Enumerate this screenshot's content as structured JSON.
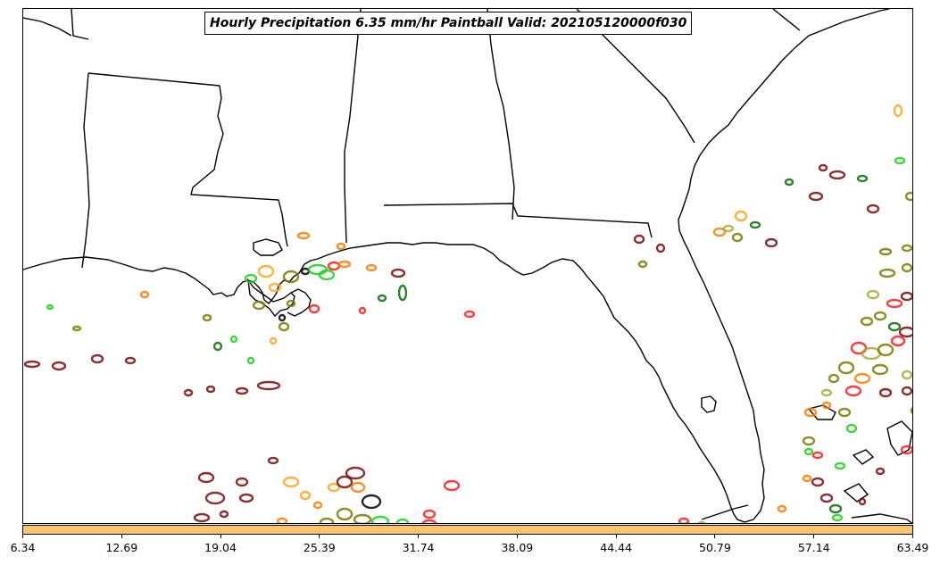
{
  "title": "Hourly Precipitation 6.35 mm/hr Paintball Valid: 202105120000f030",
  "colorbar": {
    "color": "#ffc56b",
    "ticks": [
      "6.34",
      "12.69",
      "19.04",
      "25.39",
      "31.74",
      "38.09",
      "44.44",
      "50.79",
      "57.14",
      "63.49"
    ]
  },
  "colors": {
    "member_colors": [
      "#7a0b0b",
      "#ff1a1a",
      "#ff7a00",
      "#ffa41f",
      "#1fcf1f",
      "#0b6b0b",
      "#7a7a00",
      "#a9a93b",
      "#000000"
    ]
  },
  "chart_data": {
    "type": "map",
    "region": "US Gulf Coast and Florida",
    "variable": "Hourly Precipitation",
    "threshold": "6.35 mm/hr",
    "valid": "202105120000f030"
  }
}
